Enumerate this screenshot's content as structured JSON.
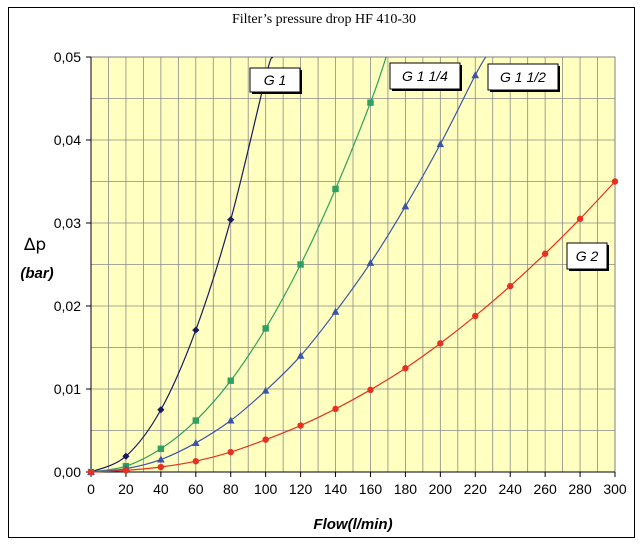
{
  "chart_data": {
    "type": "line",
    "title": "Filter’s pressure drop  HF 410-30",
    "xlabel": "Flow(l/min)",
    "ylabel_symbol": "∆p",
    "ylabel_unit": "(bar)",
    "xlim": [
      0,
      300
    ],
    "ylim": [
      0,
      0.05
    ],
    "x_ticks": [
      "0",
      "20",
      "40",
      "60",
      "80",
      "100",
      "120",
      "140",
      "160",
      "180",
      "200",
      "220",
      "240",
      "260",
      "280",
      "300"
    ],
    "y_ticks": [
      "0,00",
      "0,01",
      "0,02",
      "0,03",
      "0,04",
      "0,05"
    ],
    "grid": true,
    "background_color": "#FFFFC0",
    "series": [
      {
        "name": "G 1",
        "color": "#1A1A5E",
        "marker": "diamond",
        "x": [
          0,
          20,
          40,
          60,
          80,
          100
        ],
        "y": [
          0,
          0.0019,
          0.0075,
          0.0171,
          0.0304,
          0.0476
        ],
        "curve_end": [
          104,
          0.05
        ]
      },
      {
        "name": "G 1 1/4",
        "color": "#2EA060",
        "marker": "square",
        "x": [
          0,
          20,
          40,
          60,
          80,
          100,
          120,
          140,
          160
        ],
        "y": [
          0,
          0.0007,
          0.0028,
          0.0062,
          0.011,
          0.0173,
          0.025,
          0.0341,
          0.0445
        ],
        "curve_end": [
          169,
          0.05
        ]
      },
      {
        "name": "G 1 1/2",
        "color": "#3A55A8",
        "marker": "triangle",
        "x": [
          0,
          20,
          40,
          60,
          80,
          100,
          120,
          140,
          160,
          180,
          200,
          220
        ],
        "y": [
          0,
          0.0004,
          0.0015,
          0.0035,
          0.0062,
          0.0098,
          0.014,
          0.0193,
          0.0252,
          0.032,
          0.0395,
          0.0478
        ],
        "curve_end": [
          226,
          0.05
        ]
      },
      {
        "name": "G 2",
        "color": "#E83020",
        "marker": "circle",
        "x": [
          0,
          20,
          40,
          60,
          80,
          100,
          120,
          140,
          160,
          180,
          200,
          220,
          240,
          260,
          280,
          300
        ],
        "y": [
          0,
          0.0002,
          0.0006,
          0.0013,
          0.0024,
          0.0039,
          0.0056,
          0.0076,
          0.0099,
          0.0125,
          0.0155,
          0.0188,
          0.0224,
          0.0263,
          0.0305,
          0.035
        ]
      }
    ]
  }
}
